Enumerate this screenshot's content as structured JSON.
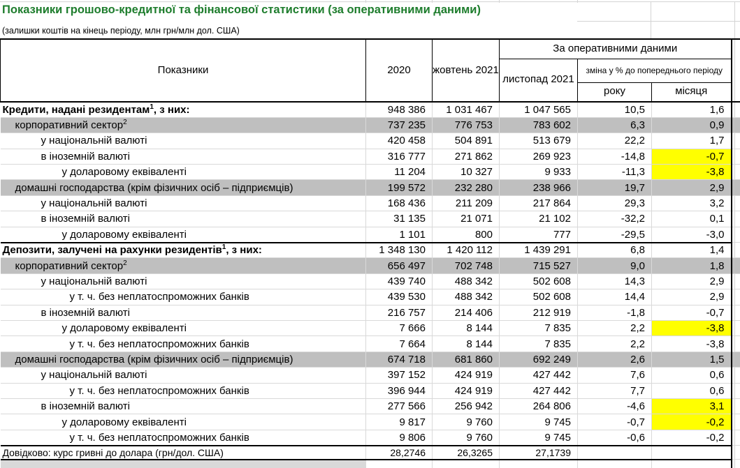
{
  "page": {
    "title": "Показники грошово-кредитної та фінансової статистики (за оперативними даними)",
    "subtitle": "(залишки коштів на кінець періоду, млн грн/млн дол. США)"
  },
  "colors": {
    "title_green": "#1E7D2D",
    "section_row_gray": "#BFBFBF",
    "highlight_yellow": "#FFFF00",
    "partial_row_gray": "#D9D9D9",
    "gridline_gray": "#D4D4D4"
  },
  "table": {
    "header": {
      "indicators": "Показники",
      "col_2020": "2020",
      "col_october": "жовтень 2021",
      "operational": "За оперативними даними",
      "col_november": "листопад 2021",
      "change_percent": "зміна у % до попереднього періоду",
      "col_year": "року",
      "col_month": "місяця"
    },
    "rows": [
      {
        "label": "Кредити, надані резидентам",
        "sup": "1",
        "suffix": ", з них:",
        "indent": 0,
        "bold": true,
        "fill": "white",
        "values": [
          "948 386",
          "1 031 467",
          "1 047 565",
          "10,5",
          "1,6"
        ],
        "yellow_last": false
      },
      {
        "label": "корпоративний сектор",
        "sup": "2",
        "suffix": "",
        "indent": 1,
        "bold": false,
        "fill": "gray",
        "values": [
          "737 235",
          "776 753",
          "783 602",
          "6,3",
          "0,9"
        ],
        "yellow_last": false
      },
      {
        "label": "у національній валюті",
        "sup": "",
        "suffix": "",
        "indent": 2,
        "bold": false,
        "fill": "white",
        "values": [
          "420 458",
          "504 891",
          "513 679",
          "22,2",
          "1,7"
        ],
        "yellow_last": false
      },
      {
        "label": "в іноземній валюті",
        "sup": "",
        "suffix": "",
        "indent": 2,
        "bold": false,
        "fill": "white",
        "values": [
          "316 777",
          "271 862",
          "269 923",
          "-14,8",
          "-0,7"
        ],
        "yellow_last": true
      },
      {
        "label": "у доларовому еквіваленті",
        "sup": "",
        "suffix": "",
        "indent": 3,
        "bold": false,
        "fill": "white",
        "values": [
          "11 204",
          "10 327",
          "9 933",
          "-11,3",
          "-3,8"
        ],
        "yellow_last": true
      },
      {
        "label": "домашні господарства (крім фізичних осіб – підприємців)",
        "sup": "",
        "suffix": "",
        "indent": 1,
        "bold": false,
        "fill": "gray",
        "values": [
          "199 572",
          "232 280",
          "238 966",
          "19,7",
          "2,9"
        ],
        "yellow_last": false
      },
      {
        "label": "у національній валюті",
        "sup": "",
        "suffix": "",
        "indent": 2,
        "bold": false,
        "fill": "white",
        "values": [
          "168 436",
          "211 209",
          "217 864",
          "29,3",
          "3,2"
        ],
        "yellow_last": false
      },
      {
        "label": "в іноземній валюті",
        "sup": "",
        "suffix": "",
        "indent": 2,
        "bold": false,
        "fill": "white",
        "values": [
          "31 135",
          "21 071",
          "21 102",
          "-32,2",
          "0,1"
        ],
        "yellow_last": false
      },
      {
        "label": "у доларовому еквіваленті",
        "sup": "",
        "suffix": "",
        "indent": 3,
        "bold": false,
        "fill": "white",
        "values": [
          "1 101",
          "800",
          "777",
          "-29,5",
          "-3,0"
        ],
        "yellow_last": false
      },
      {
        "label": "Депозити, залучені на рахунки резидентів",
        "sup": "1",
        "suffix": ", з них:",
        "indent": 0,
        "bold": true,
        "fill": "white",
        "values": [
          "1 348 130",
          "1 420 112",
          "1 439 291",
          "6,8",
          "1,4"
        ],
        "yellow_last": false,
        "black_top": true
      },
      {
        "label": "корпоративний сектор",
        "sup": "2",
        "suffix": "",
        "indent": 1,
        "bold": false,
        "fill": "gray",
        "values": [
          "656 497",
          "702 748",
          "715 527",
          "9,0",
          "1,8"
        ],
        "yellow_last": false
      },
      {
        "label": "у національній валюті",
        "sup": "",
        "suffix": "",
        "indent": 2,
        "bold": false,
        "fill": "white",
        "values": [
          "439 740",
          "488 342",
          "502 608",
          "14,3",
          "2,9"
        ],
        "yellow_last": false
      },
      {
        "label": "у т. ч. без неплатоспроможних банків",
        "sup": "",
        "suffix": "",
        "indent": 4,
        "bold": false,
        "fill": "white",
        "values": [
          "439 530",
          "488 342",
          "502 608",
          "14,4",
          "2,9"
        ],
        "yellow_last": false
      },
      {
        "label": "в іноземній валюті",
        "sup": "",
        "suffix": "",
        "indent": 2,
        "bold": false,
        "fill": "white",
        "values": [
          "216 757",
          "214 406",
          "212 919",
          "-1,8",
          "-0,7"
        ],
        "yellow_last": false
      },
      {
        "label": "у доларовому еквіваленті",
        "sup": "",
        "suffix": "",
        "indent": 3,
        "bold": false,
        "fill": "white",
        "values": [
          "7 666",
          "8 144",
          "7 835",
          "2,2",
          "-3,8"
        ],
        "yellow_last": true
      },
      {
        "label": "у т. ч. без неплатоспроможних банків",
        "sup": "",
        "suffix": "",
        "indent": 4,
        "bold": false,
        "fill": "white",
        "values": [
          "7 664",
          "8 144",
          "7 835",
          "2,2",
          "-3,8"
        ],
        "yellow_last": false
      },
      {
        "label": "домашні господарства (крім фізичних осіб – підприємців)",
        "sup": "",
        "suffix": "",
        "indent": 1,
        "bold": false,
        "fill": "gray",
        "values": [
          "674 718",
          "681 860",
          "692 249",
          "2,6",
          "1,5"
        ],
        "yellow_last": false
      },
      {
        "label": "у національній валюті",
        "sup": "",
        "suffix": "",
        "indent": 2,
        "bold": false,
        "fill": "white",
        "values": [
          "397 152",
          "424 919",
          "427 442",
          "7,6",
          "0,6"
        ],
        "yellow_last": false
      },
      {
        "label": "у т. ч. без неплатоспроможних банків",
        "sup": "",
        "suffix": "",
        "indent": 4,
        "bold": false,
        "fill": "white",
        "values": [
          "396 944",
          "424 919",
          "427 442",
          "7,7",
          "0,6"
        ],
        "yellow_last": false
      },
      {
        "label": "в іноземній валюті",
        "sup": "",
        "suffix": "",
        "indent": 2,
        "bold": false,
        "fill": "white",
        "values": [
          "277 566",
          "256 942",
          "264 806",
          "-4,6",
          "3,1"
        ],
        "yellow_last": true
      },
      {
        "label": "у доларовому еквіваленті",
        "sup": "",
        "suffix": "",
        "indent": 3,
        "bold": false,
        "fill": "white",
        "values": [
          "9 817",
          "9 760",
          "9 745",
          "-0,7",
          "-0,2"
        ],
        "yellow_last": true
      },
      {
        "label": "у т. ч. без неплатоспроможних банків",
        "sup": "",
        "suffix": "",
        "indent": 4,
        "bold": false,
        "fill": "white",
        "values": [
          "9 806",
          "9 760",
          "9 745",
          "-0,6",
          "-0,2"
        ],
        "yellow_last": false,
        "black_bottom": true
      },
      {
        "label": "Довідково: курс гривні до долара (грн/дол. США)",
        "sup": "",
        "suffix": "",
        "indent": 0,
        "bold": false,
        "fill": "white",
        "values": [
          "28,2746",
          "26,3265",
          "27,1739",
          "",
          ""
        ],
        "yellow_last": false,
        "reference": true,
        "black_top": true,
        "black_bottom": true
      },
      {
        "label": "",
        "sup": "",
        "suffix": "",
        "indent": 0,
        "bold": false,
        "fill": "white",
        "values": [
          "",
          "",
          "",
          "",
          ""
        ],
        "yellow_last": false,
        "partial": true
      }
    ]
  }
}
